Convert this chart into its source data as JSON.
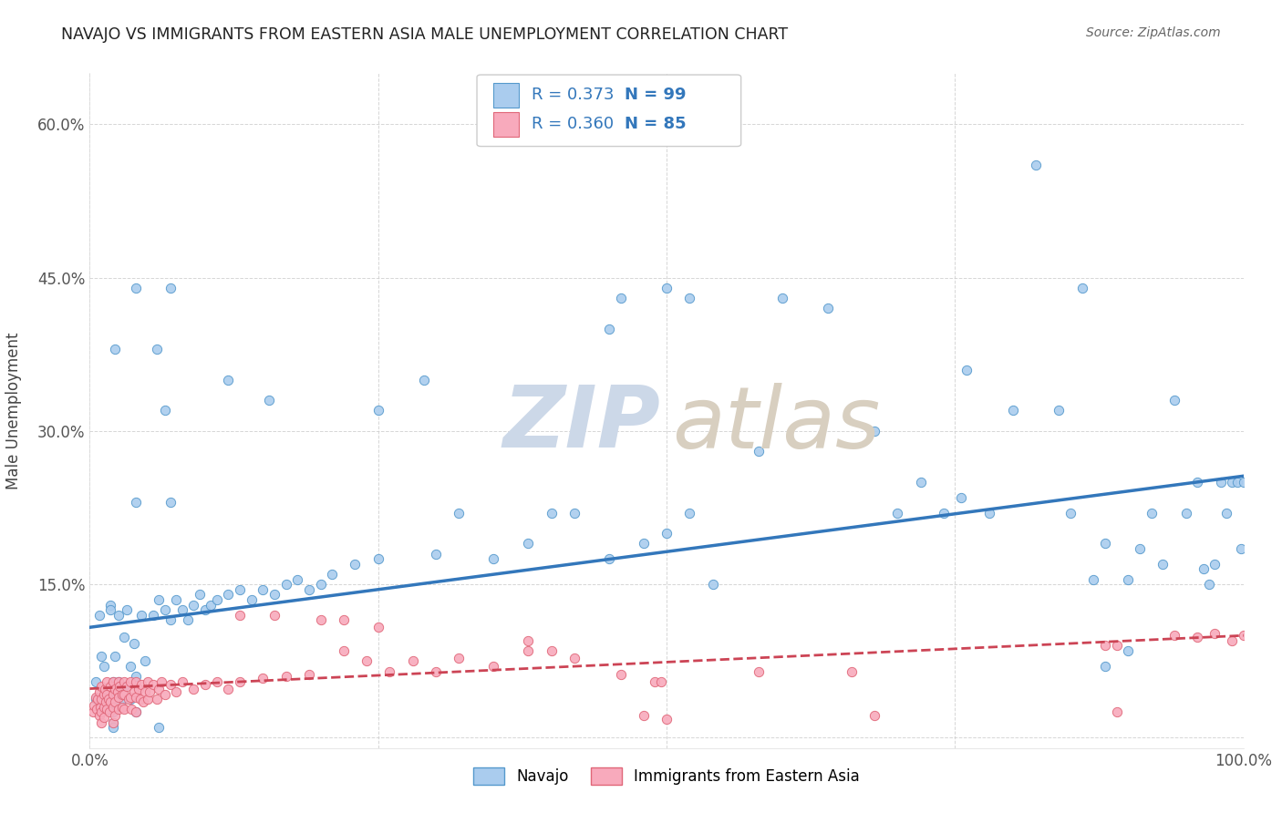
{
  "title": "NAVAJO VS IMMIGRANTS FROM EASTERN ASIA MALE UNEMPLOYMENT CORRELATION CHART",
  "source": "Source: ZipAtlas.com",
  "ylabel": "Male Unemployment",
  "xlim": [
    0.0,
    1.0
  ],
  "ylim": [
    -0.01,
    0.65
  ],
  "ytick_positions": [
    0.0,
    0.15,
    0.3,
    0.45,
    0.6
  ],
  "ytick_labels": [
    "",
    "15.0%",
    "30.0%",
    "45.0%",
    "60.0%"
  ],
  "xtick_positions": [
    0.0,
    0.25,
    0.5,
    0.75,
    1.0
  ],
  "xtick_labels": [
    "0.0%",
    "",
    "",
    "",
    "100.0%"
  ],
  "navajo_R": 0.373,
  "navajo_N": 99,
  "eastern_asia_R": 0.36,
  "eastern_asia_N": 85,
  "navajo_scatter_color": "#aaccee",
  "navajo_edge_color": "#5599cc",
  "eastern_scatter_color": "#f8aabc",
  "eastern_edge_color": "#e06678",
  "navajo_line_color": "#3377bb",
  "eastern_line_color": "#cc4455",
  "background_color": "#ffffff",
  "grid_color": "#cccccc",
  "title_color": "#222222",
  "source_color": "#666666",
  "axis_label_color": "#444444",
  "tick_color": "#555555",
  "watermark_zip_color": "#ccd8e8",
  "watermark_atlas_color": "#d8cfc0",
  "legend_box_edge": "#cccccc",
  "legend_text_color": "#3377bb",
  "navajo_line_intercept": 0.108,
  "navajo_line_slope": 0.148,
  "eastern_line_intercept": 0.048,
  "eastern_line_slope": 0.052
}
